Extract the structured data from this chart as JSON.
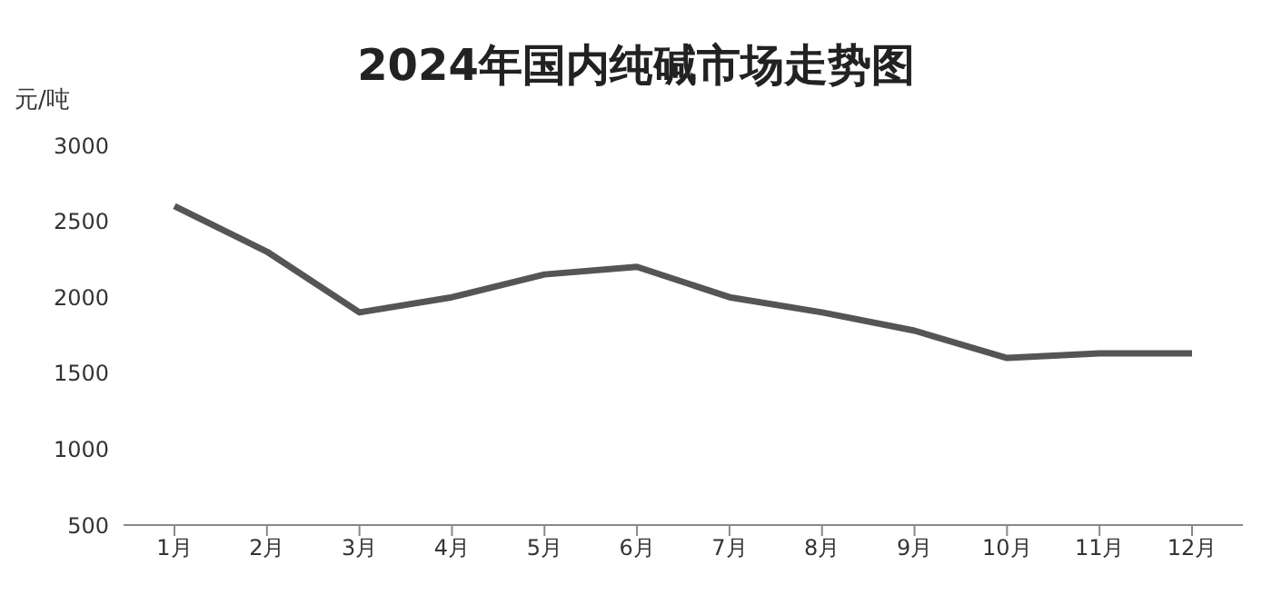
{
  "chart_data": {
    "type": "line",
    "title": "2024年国内纯碱市场走势图",
    "ylabel": "元/吨",
    "categories": [
      "1月",
      "2月",
      "3月",
      "4月",
      "5月",
      "6月",
      "7月",
      "8月",
      "9月",
      "10月",
      "11月",
      "12月"
    ],
    "series": [
      {
        "color": "#555555",
        "values": [
          2600,
          2300,
          1900,
          2000,
          2150,
          2200,
          2000,
          1900,
          1780,
          1600,
          1630,
          1630
        ]
      }
    ],
    "ylim": [
      500,
      3000
    ],
    "yticks": [
      500,
      1000,
      1500,
      2000,
      2500,
      3000
    ],
    "grid": false,
    "legend": false,
    "marker": "none",
    "line_style": "solid"
  }
}
